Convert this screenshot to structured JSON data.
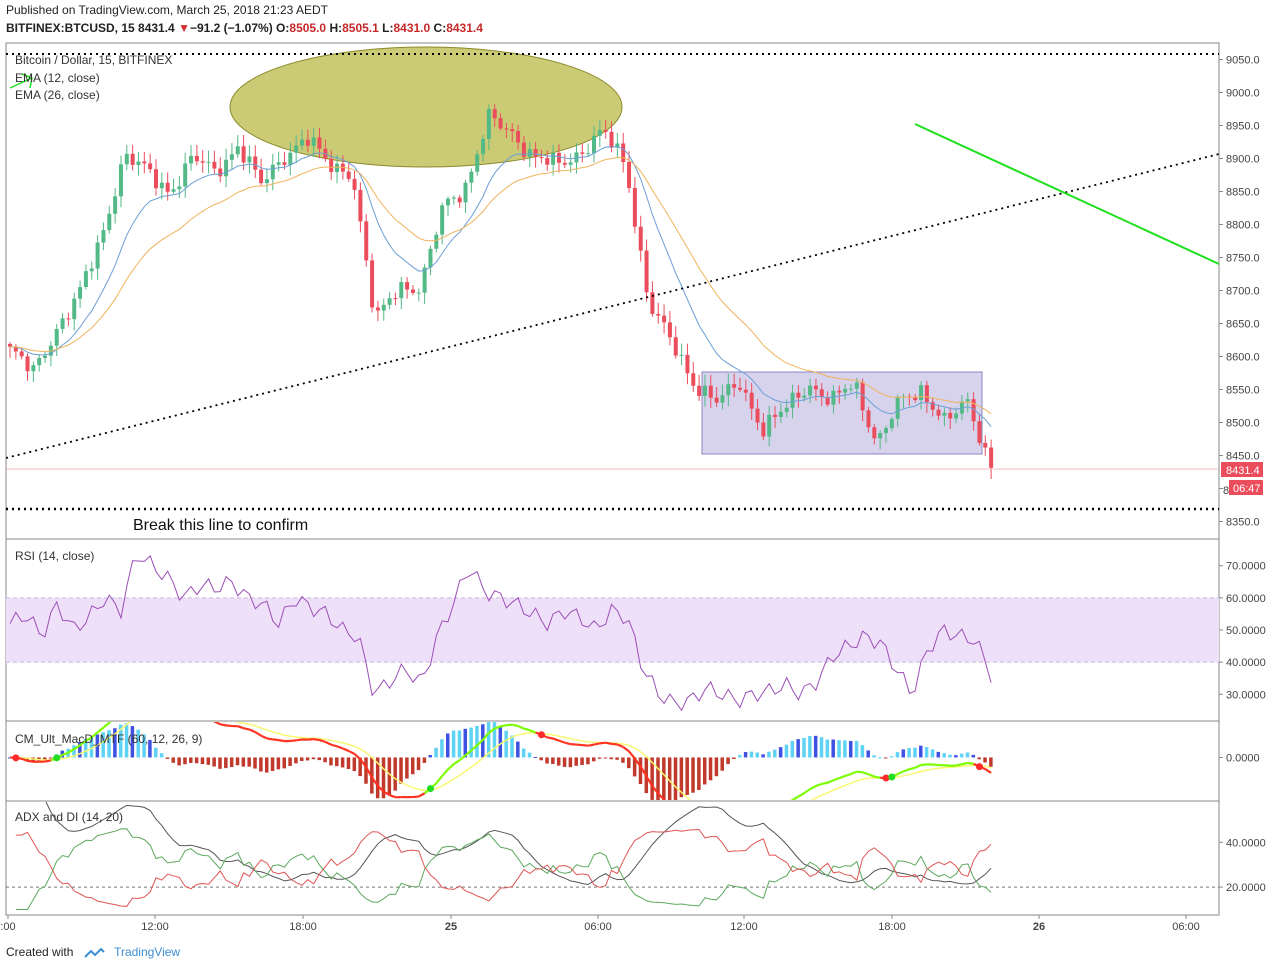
{
  "header": {
    "published": "Published on TradingView.com, March 25, 2018 21:23 AEDT",
    "symbol": "BITFINEX:BTCUSD, 15",
    "last": "8431.4",
    "change_arrow": "▼",
    "change": "−91.2 (−1.07%)",
    "o_label": "O:",
    "o": "8505.0",
    "h_label": "H:",
    "h": "8505.1",
    "l_label": "L:",
    "l": "8431.0",
    "c_label": "C:",
    "c": "8431.4"
  },
  "legend": {
    "title": "Bitcoin / Dollar, 15, BITFINEX",
    "ema12": "EMA (12, close)",
    "ema26": "EMA (26, close)"
  },
  "annotation": {
    "text": "Break this line to confirm"
  },
  "price_badges": {
    "last": "8431.4",
    "timer": "06:47",
    "partial": "8"
  },
  "panes": {
    "rsi": "RSI (14, close)",
    "macd": "CM_Ult_MacD_MTF (60, 12, 26, 9)",
    "adx": "ADX and DI (14, 20)"
  },
  "footer": {
    "created": "Created with",
    "brand": "TradingView"
  },
  "colors": {
    "up": "#53b987",
    "down": "#eb4d5c",
    "ema12": "#6b9fd6",
    "ema26": "#f0b35c",
    "rsi": "#9b4fb7",
    "rsi_band": "#efe0fa",
    "macd_fast": "#7cfc00",
    "macd_slow": "#f9f871",
    "hist_red": "#c0392b",
    "hist_cyan": "#5fd3f5",
    "hist_blue": "#3f51e0",
    "adx": "#555555",
    "di_plus": "#5da85d",
    "di_minus": "#e05555",
    "ellipse": "#b5b33a",
    "box": "#a79ed6",
    "green_line": "#20e020"
  },
  "chart_data": [
    {
      "type": "candlestick",
      "title": "Bitcoin / Dollar, 15, BITFINEX",
      "series": [
        {
          "name": "EMA (12, close)"
        },
        {
          "name": "EMA (26, close)"
        }
      ],
      "yticks": [
        8350,
        8400,
        8450,
        8500,
        8550,
        8600,
        8650,
        8700,
        8750,
        8800,
        8850,
        8900,
        8950,
        9000,
        9050
      ],
      "ytick_labels": [
        "8350.0",
        "",
        "8450.0",
        "8500.0",
        "8550.0",
        "8600.0",
        "8650.0",
        "8700.0",
        "8750.0",
        "8800.0",
        "8850.0",
        "8900.0",
        "8950.0",
        "9000.0",
        "9050.0"
      ],
      "ylim": [
        8325,
        9075
      ],
      "xticks": [
        ":00",
        "12:00",
        "18:00",
        "25",
        "06:00",
        "12:00",
        "18:00",
        "26",
        "06:00"
      ],
      "last_price": 8431.4,
      "horizontal_lines": [
        9073,
        8372
      ],
      "candle_waypoints": [
        8610,
        8575,
        8640,
        8690,
        8780,
        8905,
        8880,
        8850,
        8900,
        8880,
        8920,
        8860,
        8905,
        8930,
        8890,
        8880,
        8650,
        8710,
        8700,
        8830,
        8860,
        8960,
        8940,
        8900,
        8890,
        8910,
        8940,
        8890,
        8680,
        8620,
        8560,
        8530,
        8560,
        8490,
        8520,
        8560,
        8530,
        8560,
        8470,
        8530,
        8550,
        8500,
        8530,
        8431
      ]
    },
    {
      "type": "line",
      "title": "RSI (14, close)",
      "yticks": [
        30,
        40,
        50,
        60,
        70
      ],
      "ytick_labels": [
        "30.0000",
        "40.0000",
        "50.0000",
        "60.0000",
        "70.0000"
      ],
      "ylim": [
        22,
        78
      ],
      "band": [
        40,
        60
      ],
      "values": [
        52,
        55,
        48,
        58,
        50,
        54,
        60,
        56,
        74,
        70,
        66,
        60,
        64,
        63,
        65,
        60,
        58,
        52,
        60,
        57,
        55,
        50,
        48,
        30,
        34,
        38,
        33,
        48,
        58,
        70,
        62,
        60,
        58,
        55,
        52,
        56,
        54,
        50,
        56,
        54,
        38,
        30,
        27,
        28,
        32,
        30,
        28,
        30,
        31,
        33,
        30,
        34,
        42,
        45,
        48,
        46,
        38,
        30,
        44,
        50,
        48,
        47,
        36
      ]
    },
    {
      "type": "line",
      "title": "CM_Ult_MacD_MTF (60, 12, 26, 9)",
      "yticks": [
        0
      ],
      "ytick_labels": [
        "0.0000"
      ],
      "ylim": [
        -60,
        50
      ]
    },
    {
      "type": "line",
      "title": "ADX and DI (14, 20)",
      "yticks": [
        20,
        40
      ],
      "ytick_labels": [
        "20.0000",
        "40.0000"
      ],
      "ylim": [
        8,
        58
      ],
      "threshold": 20
    }
  ]
}
